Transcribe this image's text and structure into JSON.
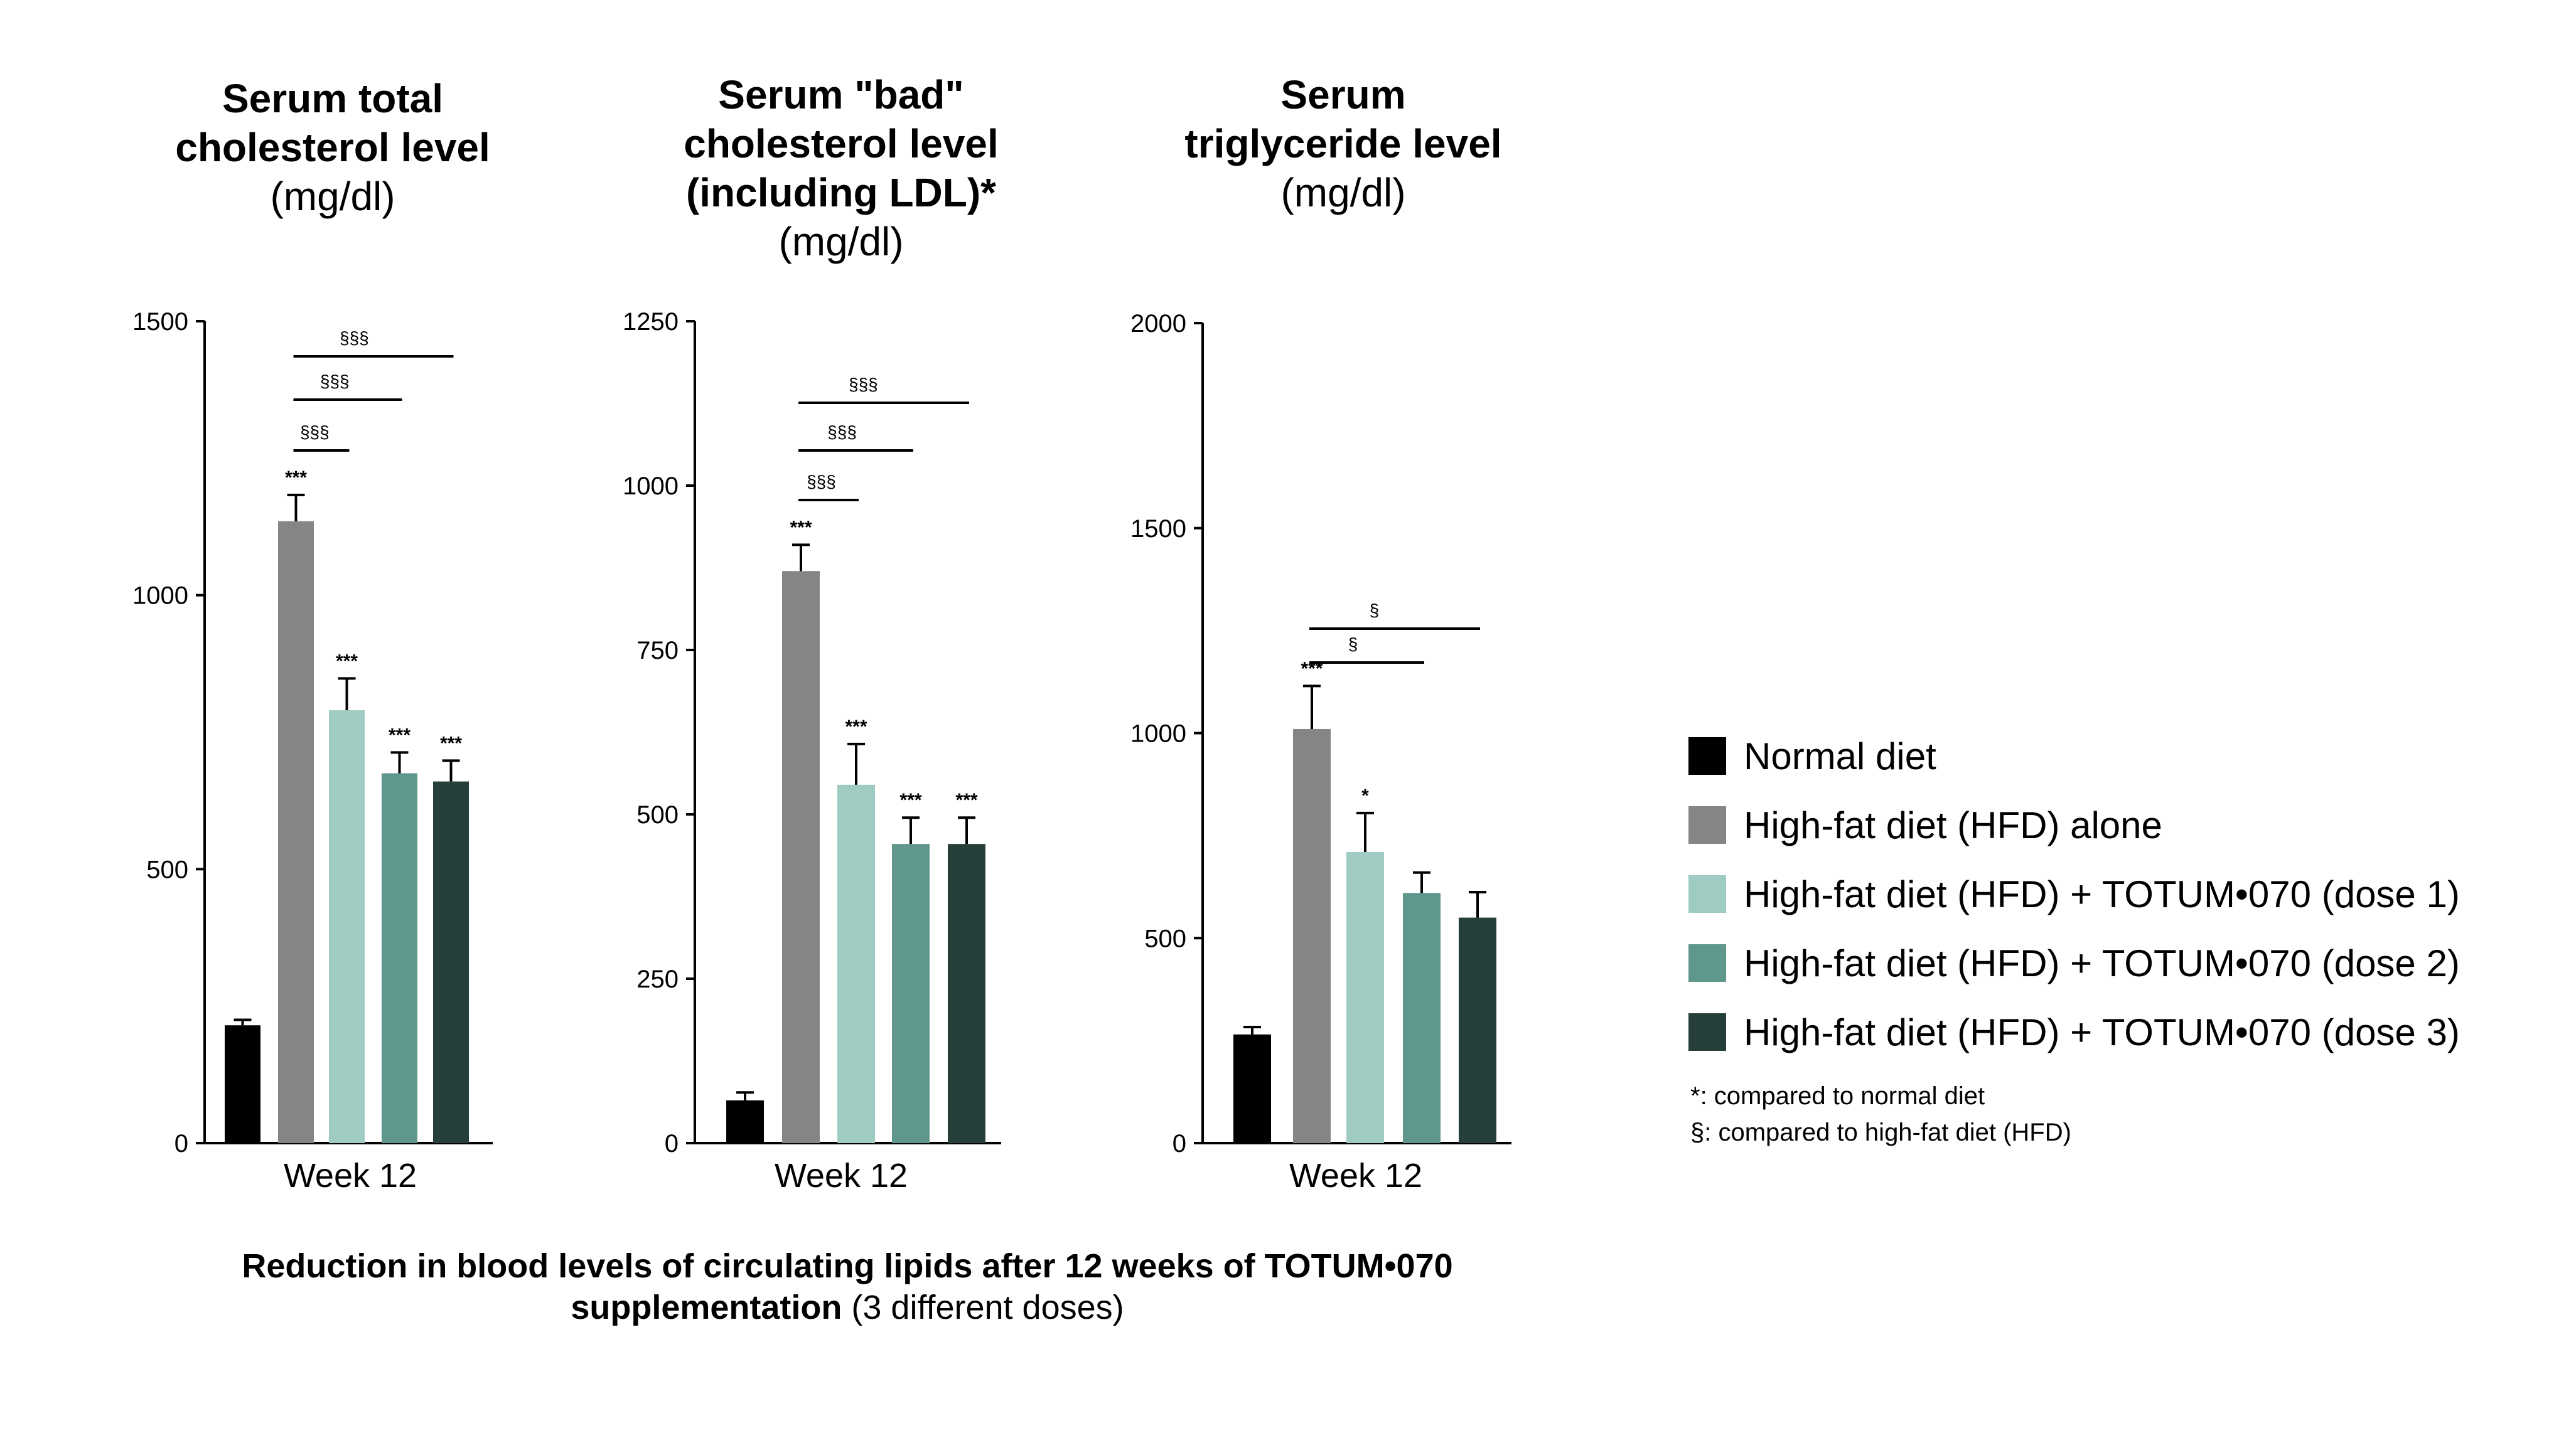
{
  "chart_data": [
    {
      "type": "bar",
      "title_bold": [
        "Serum total",
        "cholesterol level"
      ],
      "title_units": "(mg/dl)",
      "xlabel": "Week 12",
      "ylim": [
        0,
        1500
      ],
      "yticks": [
        "0",
        "500",
        "1000",
        "1500"
      ],
      "categories": [
        "Normal diet",
        "High-fat diet (HFD) alone",
        "High-fat diet (HFD) + TOTUM•070 (dose 1)",
        "High-fat diet (HFD) + TOTUM•070 (dose 2)",
        "High-fat diet (HFD) + TOTUM•070 (dose 3)"
      ],
      "values": [
        215,
        1135,
        790,
        675,
        660
      ],
      "errors": [
        10,
        48,
        58,
        38,
        38
      ],
      "star_labels": [
        "",
        "***",
        "***",
        "***",
        "***"
      ],
      "brackets": [
        {
          "from": 1,
          "to": 2,
          "label": "§§§"
        },
        {
          "from": 1,
          "to": 3,
          "label": "§§§"
        },
        {
          "from": 1,
          "to": 4,
          "label": "§§§"
        }
      ]
    },
    {
      "type": "bar",
      "title_bold": [
        "Serum \"bad\"",
        "cholesterol level",
        "(including LDL)*"
      ],
      "title_units": "(mg/dl)",
      "xlabel": "Week 12",
      "ylim": [
        0,
        1250
      ],
      "yticks": [
        "0",
        "250",
        "500",
        "750",
        "1000",
        "1250"
      ],
      "categories": [
        "Normal diet",
        "High-fat diet (HFD) alone",
        "High-fat diet (HFD) + TOTUM•070 (dose 1)",
        "High-fat diet (HFD) + TOTUM•070 (dose 2)",
        "High-fat diet (HFD) + TOTUM•070 (dose 3)"
      ],
      "values": [
        65,
        870,
        545,
        455,
        455
      ],
      "errors": [
        12,
        40,
        62,
        40,
        40
      ],
      "star_labels": [
        "",
        "***",
        "***",
        "***",
        "***"
      ],
      "brackets": [
        {
          "from": 1,
          "to": 2,
          "label": "§§§"
        },
        {
          "from": 1,
          "to": 3,
          "label": "§§§"
        },
        {
          "from": 1,
          "to": 4,
          "label": "§§§"
        }
      ]
    },
    {
      "type": "bar",
      "title_bold": [
        "Serum",
        "triglyceride level"
      ],
      "title_units": "(mg/dl)",
      "xlabel": "Week 12",
      "ylim": [
        0,
        2000
      ],
      "yticks": [
        "0",
        "500",
        "1000",
        "1500",
        "2000"
      ],
      "categories": [
        "Normal diet",
        "High-fat diet (HFD) alone",
        "High-fat diet (HFD) + TOTUM•070 (dose 1)",
        "High-fat diet (HFD) + TOTUM•070 (dose 2)",
        "High-fat diet (HFD) + TOTUM•070 (dose 3)"
      ],
      "values": [
        265,
        1010,
        710,
        610,
        550
      ],
      "errors": [
        18,
        105,
        95,
        50,
        62
      ],
      "star_labels": [
        "",
        "***",
        "*",
        "",
        ""
      ],
      "brackets": [
        {
          "from": 1,
          "to": 3,
          "label": "§"
        },
        {
          "from": 1,
          "to": 4,
          "label": "§"
        }
      ]
    }
  ],
  "legend": [
    {
      "label": "Normal diet",
      "color": "#000000"
    },
    {
      "label": "High-fat diet (HFD) alone",
      "color": "#858585"
    },
    {
      "label": "High-fat diet (HFD) + TOTUM•070 (dose 1)",
      "color": "#9ecbc2"
    },
    {
      "label": "High-fat diet (HFD) + TOTUM•070 (dose 2)",
      "color": "#5f978c"
    },
    {
      "label": "High-fat diet (HFD) + TOTUM•070 (dose 3)",
      "color": "#263f3b"
    }
  ],
  "notes": [
    "*: compared to normal diet",
    "§: compared to high-fat diet (HFD)"
  ],
  "caption": {
    "bold": "Reduction in blood levels of circulating lipids after 12 weeks of TOTUM•070",
    "bold2": "supplementation",
    "normal": " (3 different doses)"
  }
}
